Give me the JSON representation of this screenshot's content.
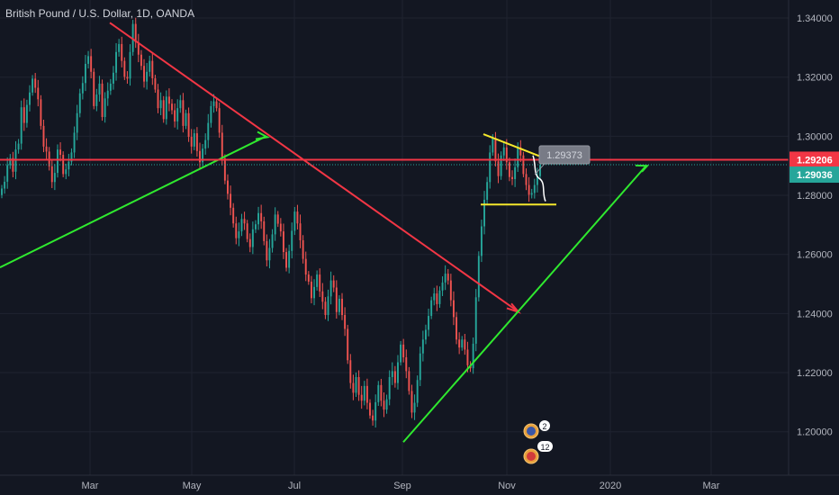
{
  "chart_data": {
    "type": "candlestick",
    "title": "British Pound / U.S. Dollar, 1D, OANDA",
    "x_ticks": [
      "Mar",
      "May",
      "Jul",
      "Sep",
      "Nov",
      "2020",
      "Mar"
    ],
    "y_ticks": [
      "1.34000",
      "1.32000",
      "1.30000",
      "1.28000",
      "1.26000",
      "1.24000",
      "1.22000",
      "1.20000"
    ],
    "ylim": [
      1.1853,
      1.3461
    ],
    "grid": true,
    "colors": {
      "up": "#26a69a",
      "down": "#ef5350",
      "background": "#131722",
      "resistance": "#f23645",
      "support": "#2fe92f",
      "triangle": "#f5e82c",
      "last_price": "#26a69a"
    },
    "price_labels": {
      "resistance": {
        "value": 1.29206,
        "text": "1.29206"
      },
      "last": {
        "value": 1.29036,
        "text": "1.29036"
      },
      "callout": {
        "value": 1.29373,
        "text": "1.29373"
      }
    },
    "events": [
      {
        "flag": "GB",
        "count": "2"
      },
      {
        "flag": "US",
        "count": "12"
      }
    ],
    "ohlc_daily_closes": [
      1.2823,
      1.2846,
      1.2902,
      1.2926,
      1.288,
      1.2955,
      1.2975,
      1.3098,
      1.3045,
      1.3106,
      1.3148,
      1.3195,
      1.3164,
      1.3125,
      1.3035,
      1.2965,
      1.2948,
      1.2898,
      1.2845,
      1.2876,
      1.2955,
      1.2937,
      1.2872,
      1.2888,
      1.2914,
      1.2945,
      1.3012,
      1.3078,
      1.3145,
      1.318,
      1.3245,
      1.3271,
      1.3218,
      1.3102,
      1.3141,
      1.3178,
      1.3065,
      1.3128,
      1.3154,
      1.3178,
      1.3215,
      1.3285,
      1.3312,
      1.3255,
      1.3201,
      1.3195,
      1.3285,
      1.338,
      1.3318,
      1.3276,
      1.3238,
      1.3185,
      1.3218,
      1.3255,
      1.3196,
      1.3158,
      1.3095,
      1.3122,
      1.3058,
      1.3134,
      1.311,
      1.3088,
      1.305,
      1.3095,
      1.3122,
      1.3035,
      1.3078,
      1.2998,
      1.2965,
      1.301,
      1.295,
      1.2912,
      1.2958,
      1.2987,
      1.3045,
      1.3102,
      1.3118,
      1.3095,
      1.3012,
      1.2925,
      1.285,
      1.2805,
      1.2758,
      1.2705,
      1.2655,
      1.2678,
      1.272,
      1.2705,
      1.2652,
      1.2625,
      1.2685,
      1.2702,
      1.274,
      1.2712,
      1.2645,
      1.258,
      1.2622,
      1.2668,
      1.2735,
      1.2704,
      1.2678,
      1.2608,
      1.2555,
      1.2612,
      1.268,
      1.2745,
      1.2705,
      1.2648,
      1.2585,
      1.2532,
      1.2508,
      1.2452,
      1.249,
      1.2532,
      1.2475,
      1.244,
      1.2395,
      1.2458,
      1.2512,
      1.2488,
      1.2405,
      1.245,
      1.2395,
      1.2348,
      1.2242,
      1.2165,
      1.2132,
      1.2185,
      1.2125,
      1.2105,
      1.2155,
      1.2098,
      1.2055,
      1.2038,
      1.21,
      1.2158,
      1.2105,
      1.2075,
      1.211,
      1.2185,
      1.2205,
      1.2165,
      1.2235,
      1.2295,
      1.2252,
      1.2205,
      1.2138,
      1.2065,
      1.2098,
      1.2175,
      1.2265,
      1.2312,
      1.2345,
      1.2392,
      1.2445,
      1.2468,
      1.2432,
      1.2478,
      1.2505,
      1.2535,
      1.2512,
      1.2445,
      1.2388,
      1.2312,
      1.2285,
      1.2312,
      1.2278,
      1.2225,
      1.2215,
      1.2298,
      1.2455,
      1.2595,
      1.2695,
      1.2785,
      1.2845,
      1.2945,
      1.2995,
      1.2915,
      1.2865,
      1.2935,
      1.2962,
      1.2912,
      1.2862,
      1.2855,
      1.2895,
      1.2962,
      1.2935,
      1.2872,
      1.2835,
      1.2802,
      1.2808,
      1.2835,
      1.2865,
      1.2903
    ]
  }
}
